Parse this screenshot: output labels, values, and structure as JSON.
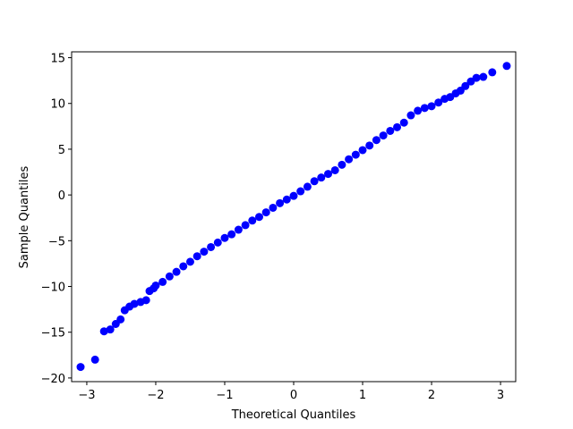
{
  "chart_data": {
    "type": "scatter",
    "xlabel": "Theoretical Quantiles",
    "ylabel": "Sample Quantiles",
    "color": "#0000ff",
    "x": [
      -3.09,
      -2.88,
      -2.75,
      -2.66,
      -2.58,
      -2.51,
      -2.45,
      -2.38,
      -2.31,
      -2.22,
      -2.14,
      -2.09,
      -2.03,
      -2.0,
      -1.9,
      -1.8,
      -1.7,
      -1.6,
      -1.5,
      -1.4,
      -1.3,
      -1.2,
      -1.1,
      -1.0,
      -0.9,
      -0.8,
      -0.7,
      -0.6,
      -0.5,
      -0.4,
      -0.3,
      -0.2,
      -0.1,
      0.0,
      0.1,
      0.2,
      0.3,
      0.4,
      0.5,
      0.6,
      0.7,
      0.8,
      0.9,
      1.0,
      1.1,
      1.2,
      1.3,
      1.4,
      1.5,
      1.6,
      1.7,
      1.8,
      1.9,
      2.0,
      2.1,
      2.19,
      2.27,
      2.35,
      2.42,
      2.49,
      2.57,
      2.65,
      2.75,
      2.88,
      3.09
    ],
    "values": [
      -18.8,
      -18.0,
      -14.9,
      -14.7,
      -14.1,
      -13.6,
      -12.6,
      -12.2,
      -11.9,
      -11.7,
      -11.5,
      -10.5,
      -10.2,
      -9.9,
      -9.5,
      -8.9,
      -8.4,
      -7.8,
      -7.3,
      -6.7,
      -6.2,
      -5.7,
      -5.2,
      -4.7,
      -4.3,
      -3.8,
      -3.3,
      -2.8,
      -2.4,
      -1.9,
      -1.4,
      -0.9,
      -0.5,
      -0.1,
      0.4,
      0.9,
      1.5,
      1.9,
      2.3,
      2.7,
      3.3,
      3.9,
      4.4,
      4.9,
      5.4,
      6.0,
      6.5,
      7.0,
      7.4,
      7.9,
      8.7,
      9.2,
      9.5,
      9.7,
      10.1,
      10.5,
      10.7,
      11.1,
      11.4,
      11.9,
      12.4,
      12.8,
      12.9,
      13.4,
      14.1
    ],
    "xlim": [
      -3.22,
      3.22
    ],
    "ylim": [
      -20.4,
      15.64
    ],
    "xticks": [
      {
        "value": -3,
        "label": "−3"
      },
      {
        "value": -2,
        "label": "−2"
      },
      {
        "value": -1,
        "label": "−1"
      },
      0,
      1,
      2,
      3
    ],
    "yticks": [
      {
        "value": -20,
        "label": "−20"
      },
      {
        "value": -15,
        "label": "−15"
      },
      {
        "value": -10,
        "label": "−10"
      },
      {
        "value": -5,
        "label": "−5"
      },
      0,
      5,
      10,
      15
    ]
  }
}
